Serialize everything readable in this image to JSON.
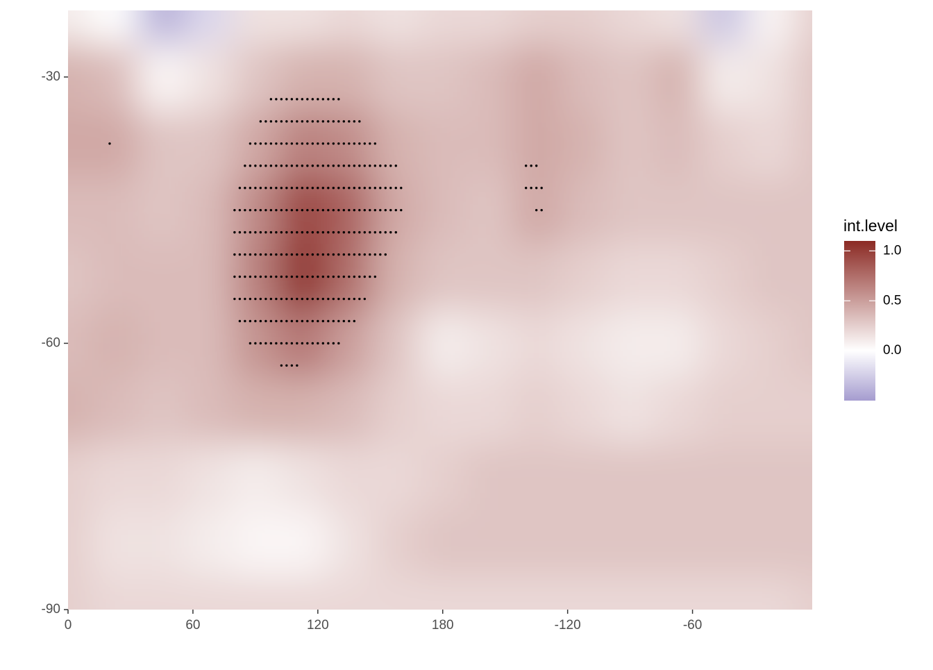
{
  "chart_data": {
    "type": "contour",
    "legend_title": "int.level",
    "xlim": [
      0,
      357.5
    ],
    "ylim": [
      -90,
      -22.5
    ],
    "xticks": [
      0,
      60,
      120,
      180,
      {
        "value": 240,
        "label": "-120"
      },
      {
        "value": 300,
        "label": "-60"
      }
    ],
    "yticks": [
      -90,
      -60,
      -30
    ],
    "zlim": [
      -0.5,
      1.1
    ],
    "legend_ticks": [
      {
        "value": 0,
        "label": "0.0"
      },
      {
        "value": 0.5,
        "label": "0.5"
      },
      {
        "value": 1,
        "label": "1.0"
      }
    ],
    "colorscale": [
      {
        "value": -0.5,
        "color": "#a59ccf"
      },
      {
        "value": 0,
        "color": "#ffffff"
      },
      {
        "value": 1.1,
        "color": "#8b2a24"
      }
    ],
    "x": [
      0,
      22.5,
      45,
      67.5,
      90,
      112.5,
      135,
      157.5,
      180,
      202.5,
      225,
      247.5,
      270,
      292.5,
      315,
      337.5,
      360
    ],
    "y": [
      -90,
      -82.5,
      -75,
      -67.5,
      -60,
      -52.5,
      -45,
      -37.5,
      -30,
      -22.5
    ],
    "z": [
      [
        0.25,
        0.2,
        0.2,
        0.2,
        0.2,
        0.2,
        0.2,
        0.2,
        0.2,
        0.2,
        0.2,
        0.2,
        0.2,
        0.2,
        0.2,
        0.2,
        0.25
      ],
      [
        0.25,
        0.15,
        0.15,
        0.1,
        0.05,
        0.05,
        0.15,
        0.25,
        0.3,
        0.3,
        0.3,
        0.3,
        0.3,
        0.3,
        0.3,
        0.3,
        0.3
      ],
      [
        0.25,
        0.2,
        0.2,
        0.15,
        0.1,
        0.15,
        0.2,
        0.2,
        0.25,
        0.3,
        0.3,
        0.3,
        0.3,
        0.3,
        0.3,
        0.3,
        0.3
      ],
      [
        0.4,
        0.35,
        0.3,
        0.35,
        0.4,
        0.4,
        0.35,
        0.25,
        0.2,
        0.2,
        0.25,
        0.2,
        0.15,
        0.2,
        0.25,
        0.25,
        0.25
      ],
      [
        0.35,
        0.4,
        0.35,
        0.35,
        0.55,
        0.7,
        0.5,
        0.3,
        0.1,
        0.15,
        0.2,
        0.15,
        0.1,
        0.1,
        0.2,
        0.25,
        0.3
      ],
      [
        0.3,
        0.35,
        0.35,
        0.35,
        0.65,
        1.05,
        0.75,
        0.4,
        0.3,
        0.3,
        0.3,
        0.25,
        0.2,
        0.2,
        0.25,
        0.3,
        0.3
      ],
      [
        0.35,
        0.35,
        0.3,
        0.35,
        0.6,
        0.95,
        0.8,
        0.45,
        0.35,
        0.3,
        0.45,
        0.35,
        0.3,
        0.3,
        0.3,
        0.3,
        0.3
      ],
      [
        0.45,
        0.45,
        0.3,
        0.3,
        0.45,
        0.65,
        0.6,
        0.4,
        0.35,
        0.35,
        0.45,
        0.4,
        0.3,
        0.35,
        0.25,
        0.2,
        0.3
      ],
      [
        0.4,
        0.35,
        0.05,
        0.15,
        0.3,
        0.4,
        0.4,
        0.3,
        0.3,
        0.35,
        0.45,
        0.35,
        0.3,
        0.4,
        0.1,
        0.15,
        0.3
      ],
      [
        0.1,
        0.0,
        -0.4,
        -0.2,
        0.15,
        0.15,
        0.2,
        0.15,
        0.2,
        0.2,
        0.25,
        0.25,
        0.2,
        0.15,
        -0.3,
        0.05,
        0.25
      ]
    ],
    "stipple": [
      {
        "y": -32.5,
        "x": [
          97.5,
          100,
          102.5,
          105,
          107.5,
          110,
          112.5,
          115,
          117.5,
          120,
          122.5,
          125,
          127.5,
          130
        ]
      },
      {
        "y": -35,
        "x": [
          92.5,
          95,
          97.5,
          100,
          102.5,
          105,
          107.5,
          110,
          112.5,
          115,
          117.5,
          120,
          122.5,
          125,
          127.5,
          130,
          132.5,
          135,
          137.5,
          140
        ]
      },
      {
        "y": -37.5,
        "x": [
          20,
          87.5,
          90,
          92.5,
          95,
          97.5,
          100,
          102.5,
          105,
          107.5,
          110,
          112.5,
          115,
          117.5,
          120,
          122.5,
          125,
          127.5,
          130,
          132.5,
          135,
          137.5,
          140,
          142.5,
          145,
          147.5
        ]
      },
      {
        "y": -40,
        "x": [
          85,
          87.5,
          90,
          92.5,
          95,
          97.5,
          100,
          102.5,
          105,
          107.5,
          110,
          112.5,
          115,
          117.5,
          120,
          122.5,
          125,
          127.5,
          130,
          132.5,
          135,
          137.5,
          140,
          142.5,
          145,
          147.5,
          150,
          152.5,
          155,
          157.5,
          220,
          222.5,
          225
        ]
      },
      {
        "y": -42.5,
        "x": [
          82.5,
          85,
          87.5,
          90,
          92.5,
          95,
          97.5,
          100,
          102.5,
          105,
          107.5,
          110,
          112.5,
          115,
          117.5,
          120,
          122.5,
          125,
          127.5,
          130,
          132.5,
          135,
          137.5,
          140,
          142.5,
          145,
          147.5,
          150,
          152.5,
          155,
          157.5,
          160,
          220,
          222.5,
          225,
          227.5
        ]
      },
      {
        "y": -45,
        "x": [
          80,
          82.5,
          85,
          87.5,
          90,
          92.5,
          95,
          97.5,
          100,
          102.5,
          105,
          107.5,
          110,
          112.5,
          115,
          117.5,
          120,
          122.5,
          125,
          127.5,
          130,
          132.5,
          135,
          137.5,
          140,
          142.5,
          145,
          147.5,
          150,
          152.5,
          155,
          157.5,
          160,
          225,
          227.5
        ]
      },
      {
        "y": -47.5,
        "x": [
          80,
          82.5,
          85,
          87.5,
          90,
          92.5,
          95,
          97.5,
          100,
          102.5,
          105,
          107.5,
          110,
          112.5,
          115,
          117.5,
          120,
          122.5,
          125,
          127.5,
          130,
          132.5,
          135,
          137.5,
          140,
          142.5,
          145,
          147.5,
          150,
          152.5,
          155,
          157.5
        ]
      },
      {
        "y": -50,
        "x": [
          80,
          82.5,
          85,
          87.5,
          90,
          92.5,
          95,
          97.5,
          100,
          102.5,
          105,
          107.5,
          110,
          112.5,
          115,
          117.5,
          120,
          122.5,
          125,
          127.5,
          130,
          132.5,
          135,
          137.5,
          140,
          142.5,
          145,
          147.5,
          150,
          152.5
        ]
      },
      {
        "y": -52.5,
        "x": [
          80,
          82.5,
          85,
          87.5,
          90,
          92.5,
          95,
          97.5,
          100,
          102.5,
          105,
          107.5,
          110,
          112.5,
          115,
          117.5,
          120,
          122.5,
          125,
          127.5,
          130,
          132.5,
          135,
          137.5,
          140,
          142.5,
          145,
          147.5
        ]
      },
      {
        "y": -55,
        "x": [
          80,
          82.5,
          85,
          87.5,
          90,
          92.5,
          95,
          97.5,
          100,
          102.5,
          105,
          107.5,
          110,
          112.5,
          115,
          117.5,
          120,
          122.5,
          125,
          127.5,
          130,
          132.5,
          135,
          137.5,
          140,
          142.5
        ]
      },
      {
        "y": -57.5,
        "x": [
          82.5,
          85,
          87.5,
          90,
          92.5,
          95,
          97.5,
          100,
          102.5,
          105,
          107.5,
          110,
          112.5,
          115,
          117.5,
          120,
          122.5,
          125,
          127.5,
          130,
          132.5,
          135,
          137.5
        ]
      },
      {
        "y": -60,
        "x": [
          87.5,
          90,
          92.5,
          95,
          97.5,
          100,
          102.5,
          105,
          107.5,
          110,
          112.5,
          115,
          117.5,
          120,
          122.5,
          125,
          127.5,
          130
        ]
      },
      {
        "y": -62.5,
        "x": [
          102.5,
          105,
          107.5,
          110
        ]
      }
    ]
  }
}
